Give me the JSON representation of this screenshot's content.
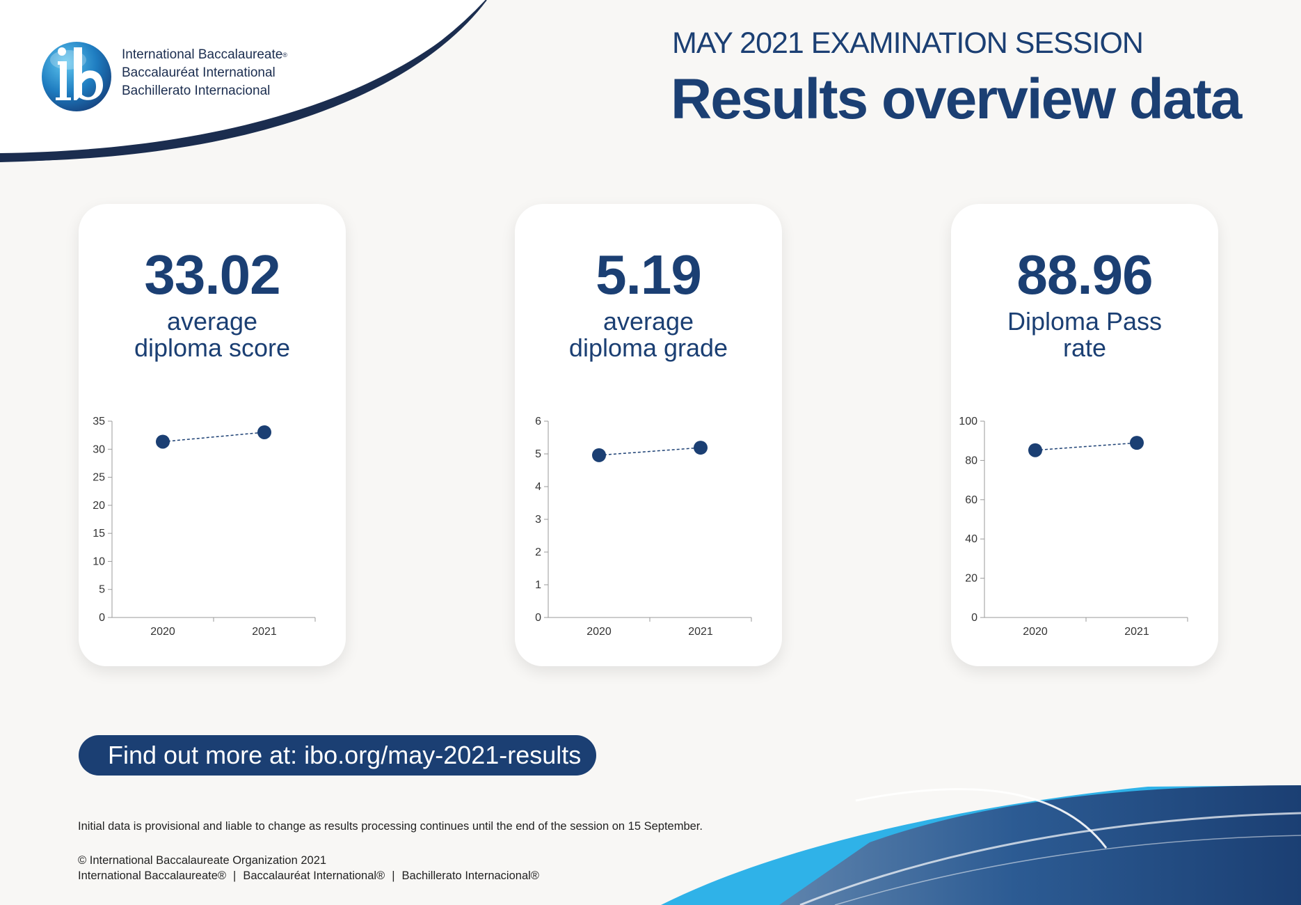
{
  "header": {
    "logo_lines": [
      "International Baccalaureate",
      "Baccalauréat International",
      "Bachillerato Internacional"
    ],
    "logo_reg_mark": "®",
    "session": "MAY 2021 EXAMINATION SESSION",
    "title": "Results overview data"
  },
  "cards": [
    {
      "value": "33.02",
      "label_lines": [
        "average",
        "diploma score"
      ],
      "chart_index": 0
    },
    {
      "value": "5.19",
      "label_lines": [
        "average",
        "diploma grade"
      ],
      "chart_index": 1
    },
    {
      "value": "88.96",
      "label_lines": [
        "Diploma Pass",
        "rate"
      ],
      "chart_index": 2
    }
  ],
  "chart_data": [
    {
      "type": "line",
      "x": [
        "2020",
        "2021"
      ],
      "series": [
        {
          "values": [
            31.34,
            33.02
          ]
        }
      ],
      "ylim": [
        0,
        35
      ],
      "yticks": [
        0,
        5,
        10,
        15,
        20,
        25,
        30,
        35
      ],
      "line_style": "dashed",
      "marker": "circle"
    },
    {
      "type": "line",
      "x": [
        "2020",
        "2021"
      ],
      "series": [
        {
          "values": [
            4.96,
            5.19
          ]
        }
      ],
      "ylim": [
        0,
        6
      ],
      "yticks": [
        0,
        1,
        2,
        3,
        4,
        5,
        6
      ],
      "line_style": "dashed",
      "marker": "circle"
    },
    {
      "type": "line",
      "x": [
        "2020",
        "2021"
      ],
      "series": [
        {
          "values": [
            85.2,
            88.96
          ]
        }
      ],
      "ylim": [
        0,
        100
      ],
      "yticks": [
        0,
        20,
        40,
        60,
        80,
        100
      ],
      "line_style": "dashed",
      "marker": "circle"
    }
  ],
  "cta": {
    "label": "Find out more at: ibo.org/may-2021-results"
  },
  "footer": {
    "disclaimer": "Initial data is provisional and liable to change as results processing continues until the end of the session on 15 September.",
    "copyright": "© International Baccalaureate Organization 2021",
    "names": [
      "International Baccalaureate®",
      "Baccalauréat International®",
      "Bachillerato Internacional®"
    ],
    "separator": "|"
  },
  "colors": {
    "primary": "#1b3f73",
    "light_blue": "#2fb2e8",
    "background": "#f8f7f5",
    "card": "#ffffff"
  }
}
